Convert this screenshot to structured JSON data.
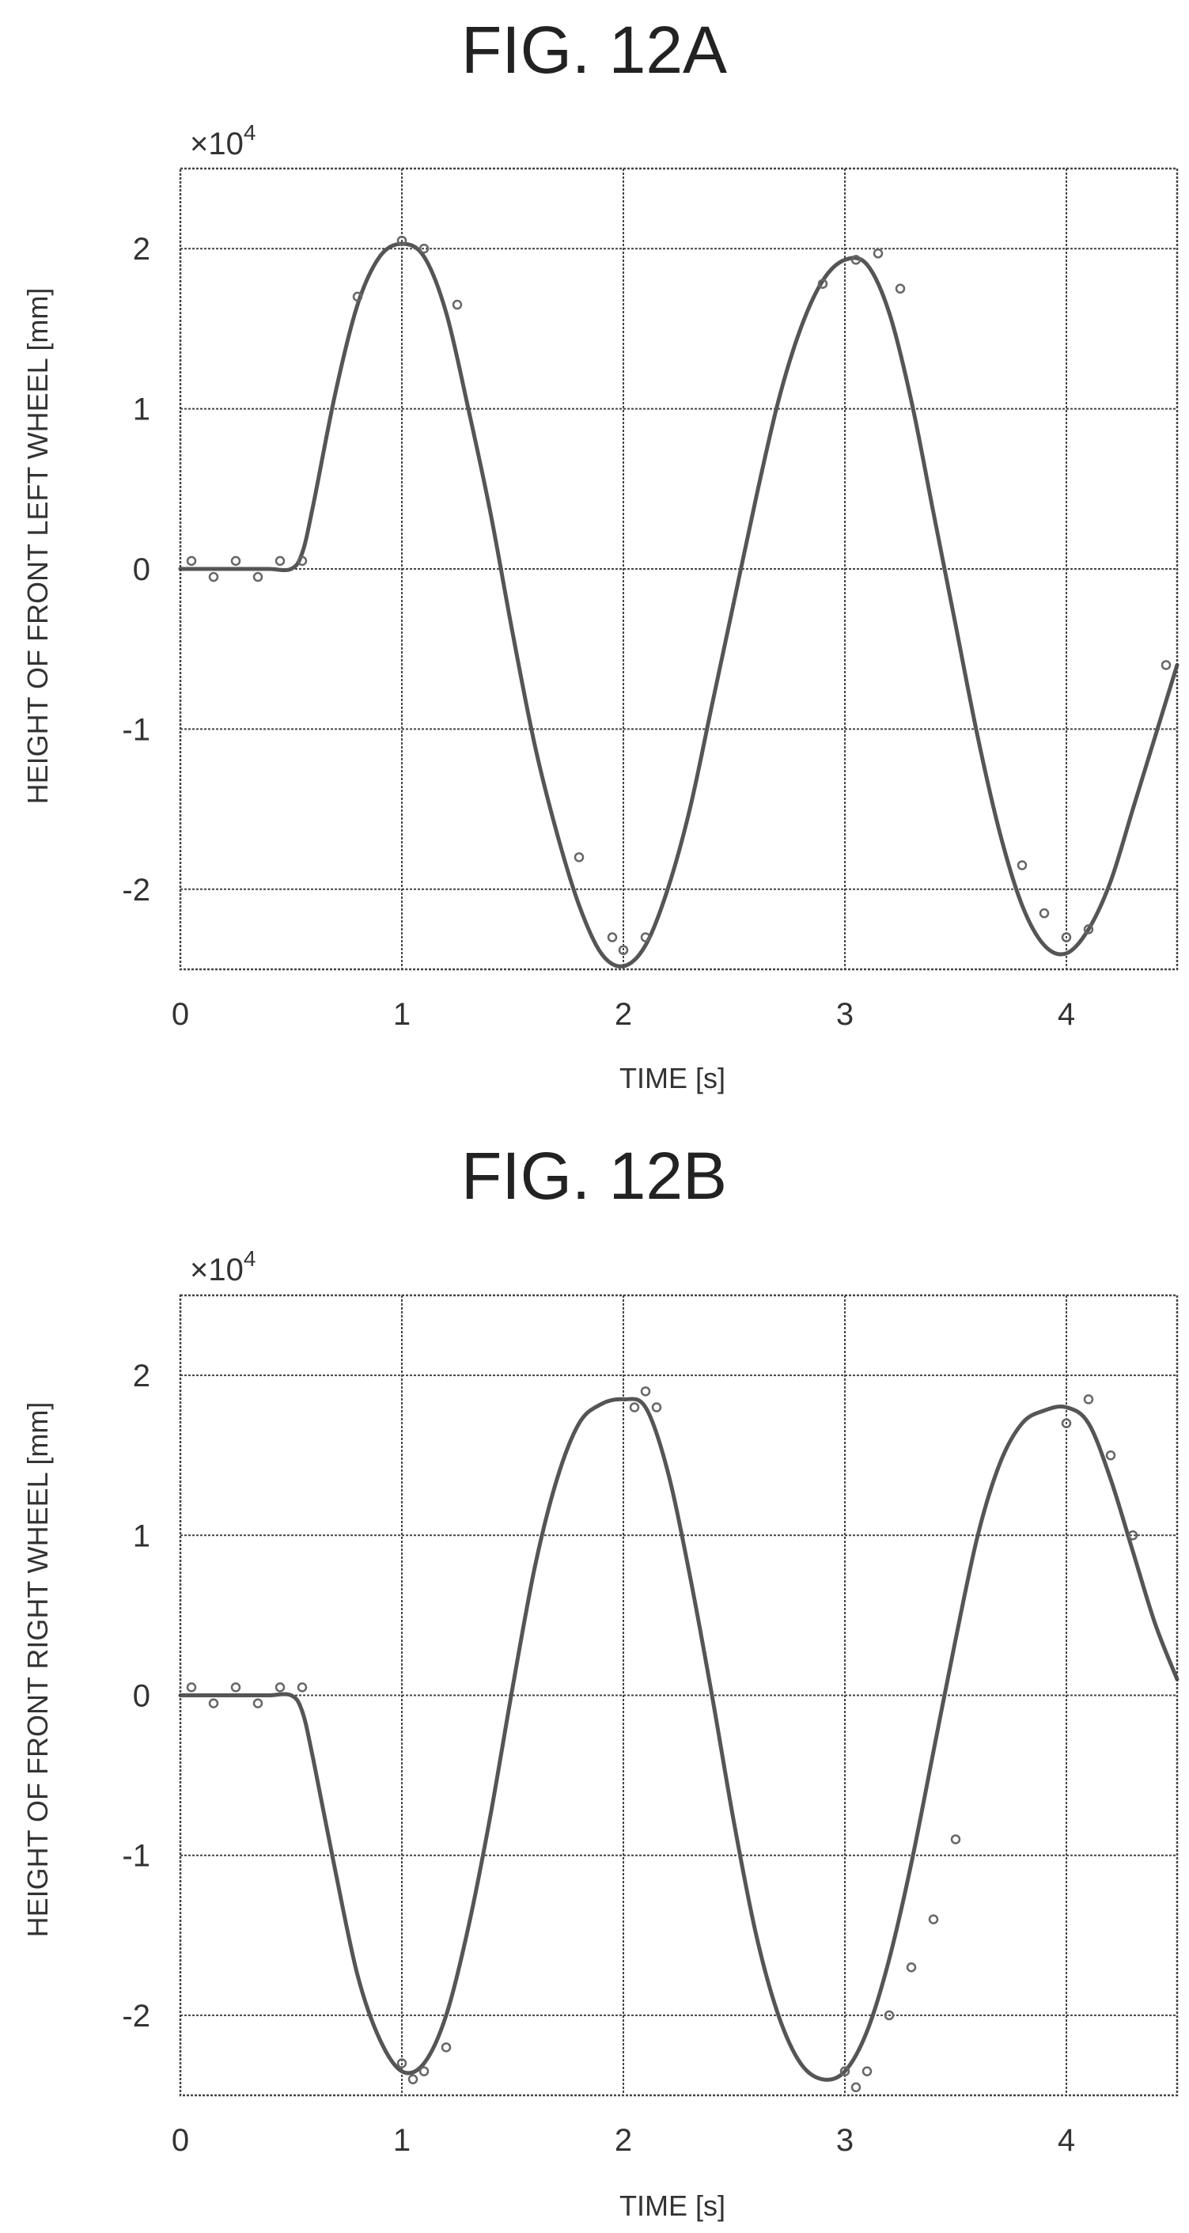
{
  "chart_data": [
    {
      "type": "line",
      "title": "FIG. 12A",
      "xlabel": "TIME [s]",
      "ylabel": "HEIGHT OF FRONT LEFT WHEEL [mm]",
      "y_multiplier_label": "×10",
      "y_multiplier_exponent": "4",
      "xlim": [
        0,
        4.5
      ],
      "ylim": [
        -2.5,
        2.5
      ],
      "xticks": [
        "0",
        "1",
        "2",
        "3",
        "4"
      ],
      "yticks": [
        "2",
        "1",
        "0",
        "-1",
        "-2"
      ],
      "grid": true,
      "series": [
        {
          "style": "solid",
          "x": [
            0,
            0.1,
            0.2,
            0.3,
            0.4,
            0.5,
            0.55,
            0.6,
            0.7,
            0.8,
            0.9,
            1.0,
            1.1,
            1.2,
            1.3,
            1.4,
            1.5,
            1.6,
            1.7,
            1.8,
            1.9,
            2.0,
            2.1,
            2.2,
            2.3,
            2.4,
            2.5,
            2.6,
            2.7,
            2.8,
            2.9,
            3.0,
            3.1,
            3.2,
            3.3,
            3.4,
            3.5,
            3.6,
            3.7,
            3.8,
            3.9,
            4.0,
            4.1,
            4.2,
            4.3,
            4.4,
            4.5
          ],
          "y": [
            0,
            0,
            0,
            0,
            0,
            0,
            0.1,
            0.4,
            1.1,
            1.65,
            1.95,
            2.03,
            1.95,
            1.6,
            1.0,
            0.35,
            -0.4,
            -1.1,
            -1.65,
            -2.1,
            -2.4,
            -2.48,
            -2.35,
            -2.0,
            -1.5,
            -0.85,
            -0.2,
            0.45,
            1.05,
            1.5,
            1.8,
            1.93,
            1.9,
            1.6,
            1.05,
            0.35,
            -0.35,
            -1.05,
            -1.65,
            -2.1,
            -2.35,
            -2.4,
            -2.25,
            -1.95,
            -1.5,
            -1.05,
            -0.6
          ]
        },
        {
          "style": "markers",
          "x": [
            0.05,
            0.15,
            0.25,
            0.35,
            0.45,
            0.55,
            0.8,
            1.0,
            1.1,
            1.25,
            1.8,
            1.95,
            2.0,
            2.1,
            2.9,
            3.05,
            3.15,
            3.25,
            3.8,
            3.9,
            4.0,
            4.1,
            4.45
          ],
          "y": [
            0.05,
            -0.05,
            0.05,
            -0.05,
            0.05,
            0.05,
            1.7,
            2.05,
            2.0,
            1.65,
            -1.8,
            -2.3,
            -2.38,
            -2.3,
            1.78,
            1.93,
            1.97,
            1.75,
            -1.85,
            -2.15,
            -2.3,
            -2.25,
            -0.6
          ]
        }
      ]
    },
    {
      "type": "line",
      "title": "FIG. 12B",
      "xlabel": "TIME [s]",
      "ylabel": "HEIGHT OF FRONT RIGHT WHEEL [mm]",
      "y_multiplier_label": "×10",
      "y_multiplier_exponent": "4",
      "xlim": [
        0,
        4.5
      ],
      "ylim": [
        -2.5,
        2.5
      ],
      "xticks": [
        "0",
        "1",
        "2",
        "3",
        "4"
      ],
      "yticks": [
        "2",
        "1",
        "0",
        "-1",
        "-2"
      ],
      "grid": true,
      "series": [
        {
          "style": "solid",
          "x": [
            0,
            0.1,
            0.2,
            0.3,
            0.4,
            0.5,
            0.55,
            0.6,
            0.7,
            0.8,
            0.9,
            1.0,
            1.1,
            1.2,
            1.3,
            1.4,
            1.5,
            1.6,
            1.7,
            1.8,
            1.9,
            2.0,
            2.1,
            2.2,
            2.3,
            2.4,
            2.5,
            2.6,
            2.7,
            2.8,
            2.9,
            3.0,
            3.1,
            3.2,
            3.3,
            3.4,
            3.5,
            3.6,
            3.7,
            3.8,
            3.9,
            4.0,
            4.1,
            4.2,
            4.3,
            4.4,
            4.5
          ],
          "y": [
            0,
            0,
            0,
            0,
            0,
            0,
            -0.1,
            -0.4,
            -1.1,
            -1.75,
            -2.15,
            -2.35,
            -2.3,
            -2.0,
            -1.45,
            -0.75,
            0.05,
            0.8,
            1.35,
            1.7,
            1.82,
            1.85,
            1.8,
            1.4,
            0.75,
            0.0,
            -0.8,
            -1.5,
            -2.0,
            -2.3,
            -2.4,
            -2.35,
            -2.1,
            -1.65,
            -1.05,
            -0.35,
            0.35,
            1.0,
            1.45,
            1.7,
            1.78,
            1.8,
            1.7,
            1.35,
            0.9,
            0.45,
            0.1
          ]
        },
        {
          "style": "markers",
          "x": [
            0.05,
            0.15,
            0.25,
            0.35,
            0.45,
            0.55,
            1.0,
            1.05,
            1.1,
            1.2,
            2.05,
            2.1,
            2.15,
            3.0,
            3.05,
            3.1,
            3.2,
            3.3,
            3.4,
            3.5,
            4.0,
            4.1,
            4.2,
            4.3
          ],
          "y": [
            0.05,
            -0.05,
            0.05,
            -0.05,
            0.05,
            0.05,
            -2.3,
            -2.4,
            -2.35,
            -2.2,
            1.8,
            1.9,
            1.8,
            -2.35,
            -2.45,
            -2.35,
            -2.0,
            -1.7,
            -1.4,
            -0.9,
            1.7,
            1.85,
            1.5,
            1.0
          ]
        }
      ]
    }
  ]
}
